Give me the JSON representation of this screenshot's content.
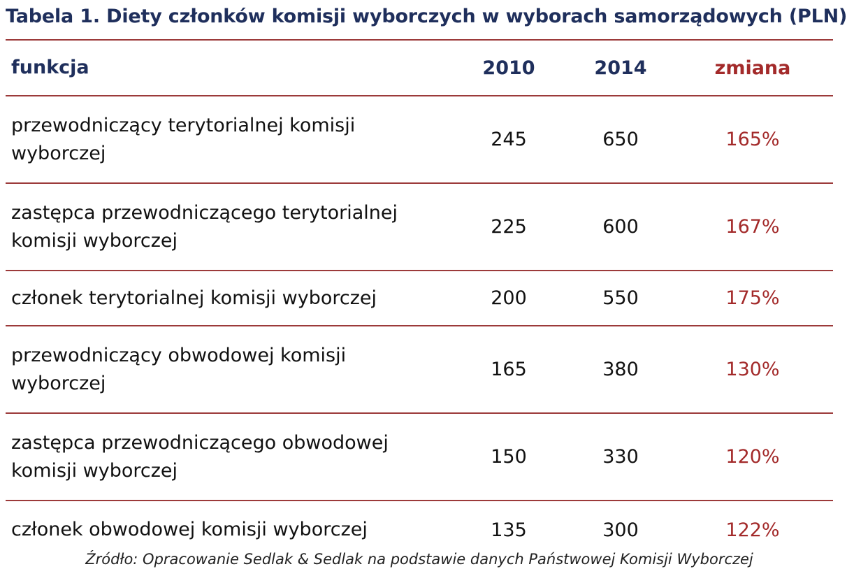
{
  "title": "Tabela 1. Diety członków komisji wyborczych w wyborach samorządowych (PLN)",
  "table": {
    "headers": {
      "function": "funkcja",
      "y2010": "2010",
      "y2014": "2014",
      "change": "zmiana"
    },
    "rows": [
      {
        "function": "przewodniczący terytorialnej komisji wyborczej",
        "y2010": "245",
        "y2014": "650",
        "change": "165%"
      },
      {
        "function": "zastępca przewodniczącego terytorialnej komisji wyborczej",
        "y2010": "225",
        "y2014": "600",
        "change": "167%"
      },
      {
        "function": "członek terytorialnej komisji wyborczej",
        "y2010": "200",
        "y2014": "550",
        "change": "175%"
      },
      {
        "function": "przewodniczący obwodowej komisji wyborczej",
        "y2010": "165",
        "y2014": "380",
        "change": "130%"
      },
      {
        "function": "zastępca przewodniczącego obwodowej komisji wyborczej",
        "y2010": "150",
        "y2014": "330",
        "change": "120%"
      },
      {
        "function": "członek obwodowej komisji wyborczej",
        "y2010": "135",
        "y2014": "300",
        "change": "122%"
      }
    ]
  },
  "source": "Źródło: Opracowanie Sedlak & Sedlak na podstawie danych Państwowej Komisji Wyborczej",
  "colors": {
    "heading_blue": "#1f2f5c",
    "accent_red": "#a32a2a",
    "rule_red": "#9c3a3a"
  }
}
